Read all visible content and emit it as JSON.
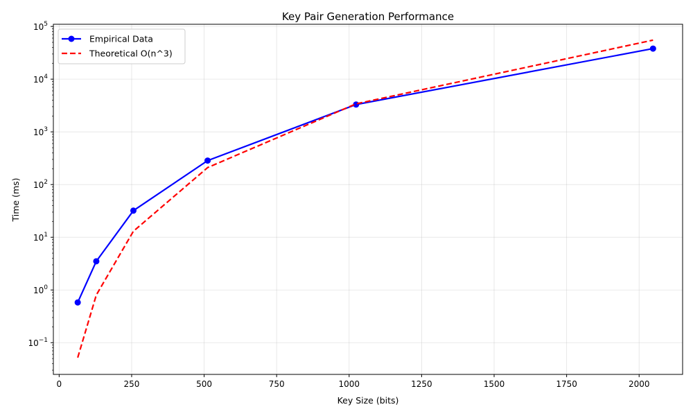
{
  "chart_data": {
    "type": "line",
    "title": "Key Pair Generation Performance",
    "xlabel": "Key Size (bits)",
    "ylabel": "Time (ms)",
    "xlim": [
      -20,
      2150
    ],
    "ylim": [
      0.025,
      110000
    ],
    "yscale": "log",
    "grid": true,
    "legend_position": "top-left",
    "x_ticks": [
      0,
      250,
      500,
      750,
      1000,
      1250,
      1500,
      1750,
      2000
    ],
    "x_tick_labels": [
      "0",
      "250",
      "500",
      "750",
      "1000",
      "1250",
      "1500",
      "1750",
      "2000"
    ],
    "y_ticks": [
      0.1,
      1,
      10,
      100,
      1000,
      10000,
      100000
    ],
    "y_tick_bases": [
      "10",
      "10",
      "10",
      "10",
      "10",
      "10",
      "10"
    ],
    "y_tick_exponents": [
      "−1",
      "0",
      "1",
      "2",
      "3",
      "4",
      "5"
    ],
    "series": [
      {
        "name": "Empirical Data",
        "color": "#0000ff",
        "style": "solid",
        "marker": "circle",
        "x": [
          64,
          128,
          256,
          512,
          1024,
          2048
        ],
        "y": [
          0.58,
          3.5,
          32,
          285,
          3300,
          38000
        ]
      },
      {
        "name": "Theoretical O(n^3)",
        "color": "#ff0000",
        "style": "dashed",
        "marker": "none",
        "x": [
          64,
          128,
          256,
          512,
          1024,
          2048
        ],
        "y": [
          0.052,
          0.8,
          13,
          210,
          3400,
          55000
        ]
      }
    ]
  }
}
